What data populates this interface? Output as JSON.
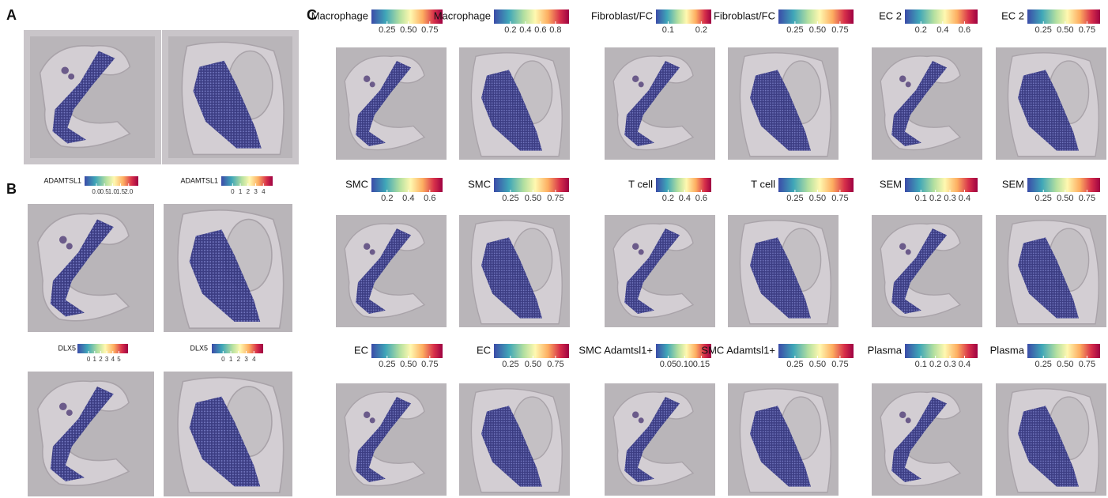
{
  "panels": {
    "A": {
      "label": "A"
    },
    "B": {
      "label": "B",
      "plots": [
        {
          "gene": "ADAMTSL1",
          "ticks": [
            "0.0",
            "0.5",
            "1.0",
            "1.5",
            "2.0"
          ]
        },
        {
          "gene": "ADAMTSL1",
          "ticks": [
            "0",
            "1",
            "2",
            "3",
            "4"
          ]
        },
        {
          "gene": "DLX5",
          "ticks": [
            "0",
            "1",
            "2",
            "3",
            "4",
            "5"
          ]
        },
        {
          "gene": "DLX5",
          "ticks": [
            "0",
            "1",
            "2",
            "3",
            "4"
          ]
        }
      ]
    },
    "C": {
      "label": "C",
      "plots": [
        {
          "label": "Macrophage",
          "ticks": [
            "0.25",
            "0.50",
            "0.75"
          ]
        },
        {
          "label": "Macrophage",
          "ticks": [
            "0.2",
            "0.4",
            "0.6",
            "0.8"
          ]
        },
        {
          "label": "Fibroblast/FC",
          "ticks": [
            "0.1",
            "0.2"
          ]
        },
        {
          "label": "Fibroblast/FC",
          "ticks": [
            "0.25",
            "0.50",
            "0.75"
          ]
        },
        {
          "label": "EC 2",
          "ticks": [
            "0.2",
            "0.4",
            "0.6"
          ]
        },
        {
          "label": "EC 2",
          "ticks": [
            "0.25",
            "0.50",
            "0.75"
          ]
        },
        {
          "label": "SMC",
          "ticks": [
            "0.2",
            "0.4",
            "0.6"
          ]
        },
        {
          "label": "SMC",
          "ticks": [
            "0.25",
            "0.50",
            "0.75"
          ]
        },
        {
          "label": "T cell",
          "ticks": [
            "0.2",
            "0.4",
            "0.6"
          ]
        },
        {
          "label": "T cell",
          "ticks": [
            "0.25",
            "0.50",
            "0.75"
          ]
        },
        {
          "label": "SEM",
          "ticks": [
            "0.1",
            "0.2",
            "0.3",
            "0.4"
          ]
        },
        {
          "label": "SEM",
          "ticks": [
            "0.25",
            "0.50",
            "0.75"
          ]
        },
        {
          "label": "EC",
          "ticks": [
            "0.25",
            "0.50",
            "0.75"
          ]
        },
        {
          "label": "EC",
          "ticks": [
            "0.25",
            "0.50",
            "0.75"
          ]
        },
        {
          "label": "SMC Adamtsl1+",
          "ticks": [
            "0.05",
            "0.10",
            "0.15"
          ]
        },
        {
          "label": "SMC Adamtsl1+",
          "ticks": [
            "0.25",
            "0.50",
            "0.75"
          ]
        },
        {
          "label": "Plasma",
          "ticks": [
            "0.1",
            "0.2",
            "0.3",
            "0.4"
          ]
        },
        {
          "label": "Plasma",
          "ticks": [
            "0.25",
            "0.50",
            "0.75"
          ]
        }
      ]
    }
  }
}
